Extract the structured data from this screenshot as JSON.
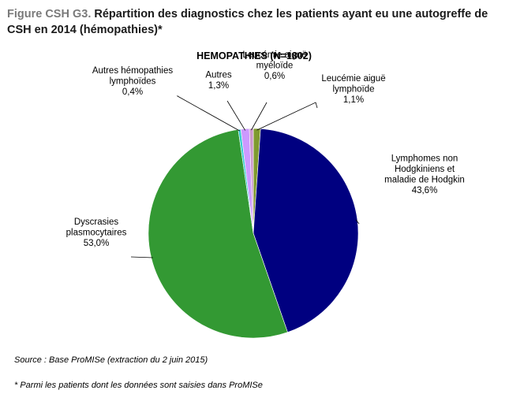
{
  "figure": {
    "label": "Figure CSH G3.",
    "title": "Répartition des diagnostics chez les patients ayant eu une autogreffe de CSH en 2014 (hémopathies)*"
  },
  "chart_data": {
    "type": "pie",
    "title": "HEMOPATHIES  (N=1802)",
    "start_angle_deg": 0,
    "direction": "clockwise",
    "slices": [
      {
        "label_lines": [
          "Leucémie aiguë",
          "lymphoïde"
        ],
        "value_label": "1,1%",
        "value": 1.1,
        "color": "#7f9a2e"
      },
      {
        "label_lines": [
          "Lymphomes non",
          "Hodgkiniens et",
          "maladie de Hodgkin"
        ],
        "value_label": "43,6%",
        "value": 43.6,
        "color": "#000080"
      },
      {
        "label_lines": [
          "Dyscrasies",
          "plasmocytaires"
        ],
        "value_label": "53,0%",
        "value": 53.0,
        "color": "#339933"
      },
      {
        "label_lines": [
          "Autres hémopathies",
          "lymphoïdes"
        ],
        "value_label": "0,4%",
        "value": 0.4,
        "color": "#33cccc"
      },
      {
        "label_lines": [
          "Autres"
        ],
        "value_label": "1,3%",
        "value": 1.3,
        "color": "#cc99ff"
      },
      {
        "label_lines": [
          "Leucémie aiguë",
          "myéloïde"
        ],
        "value_label": "0,6%",
        "value": 0.6,
        "color": "#cc99cc"
      }
    ]
  },
  "notes": {
    "source": "Source : Base ProMISe (extraction du 2 juin 2015)",
    "footnote": "* Parmi les patients dont les données sont saisies dans ProMISe"
  }
}
